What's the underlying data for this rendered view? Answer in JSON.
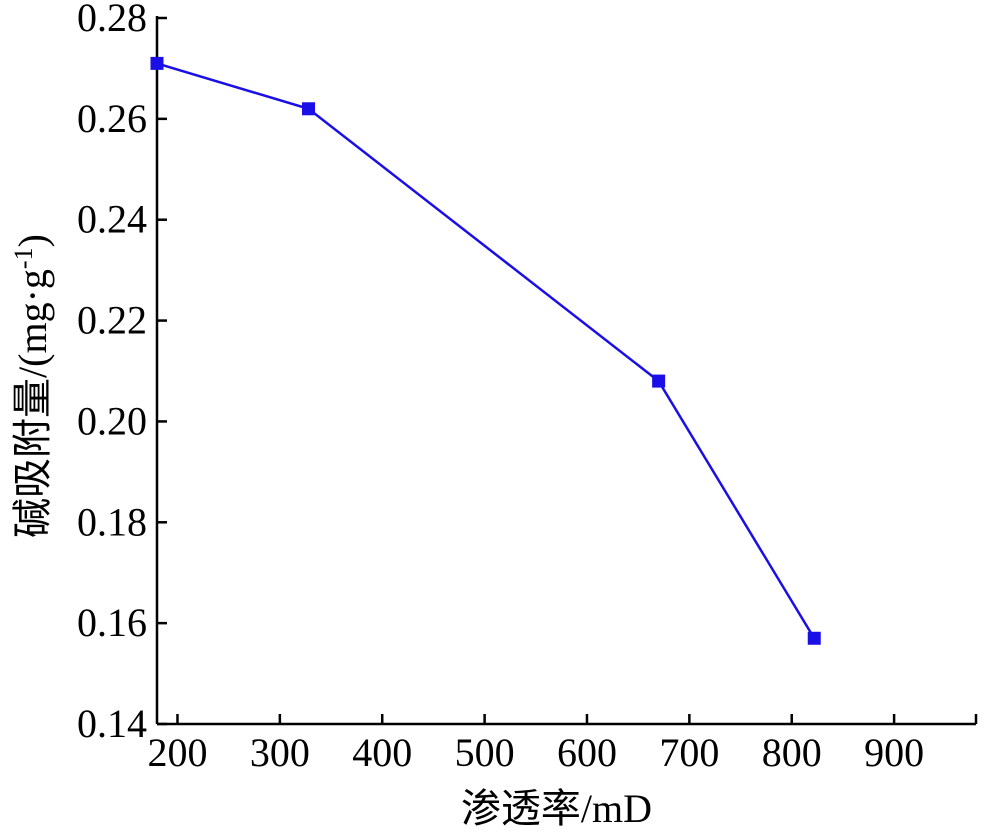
{
  "chart_data": {
    "type": "line",
    "title": "",
    "xlabel": "渗透率/mD",
    "ylabel": "碱吸附量/(mg·g",
    "ylabel_superscript": "-1",
    "ylabel_suffix": ")",
    "xlim": [
      180,
      980
    ],
    "ylim": [
      0.14,
      0.28
    ],
    "x_ticks": [
      200,
      300,
      400,
      500,
      600,
      700,
      800,
      900
    ],
    "x_tick_labels": [
      "200",
      "300",
      "400",
      "500",
      "600",
      "700",
      "800",
      "900"
    ],
    "y_ticks": [
      0.14,
      0.16,
      0.18,
      0.2,
      0.22,
      0.24,
      0.26,
      0.28
    ],
    "y_tick_labels": [
      "0.14",
      "0.16",
      "0.18",
      "0.20",
      "0.22",
      "0.24",
      "0.26",
      "0.28"
    ],
    "grid": false,
    "series": [
      {
        "x": [
          180,
          328,
          670,
          822
        ],
        "y": [
          0.271,
          0.262,
          0.208,
          0.157
        ],
        "color": "#1a0fe6",
        "marker": "square"
      }
    ]
  }
}
